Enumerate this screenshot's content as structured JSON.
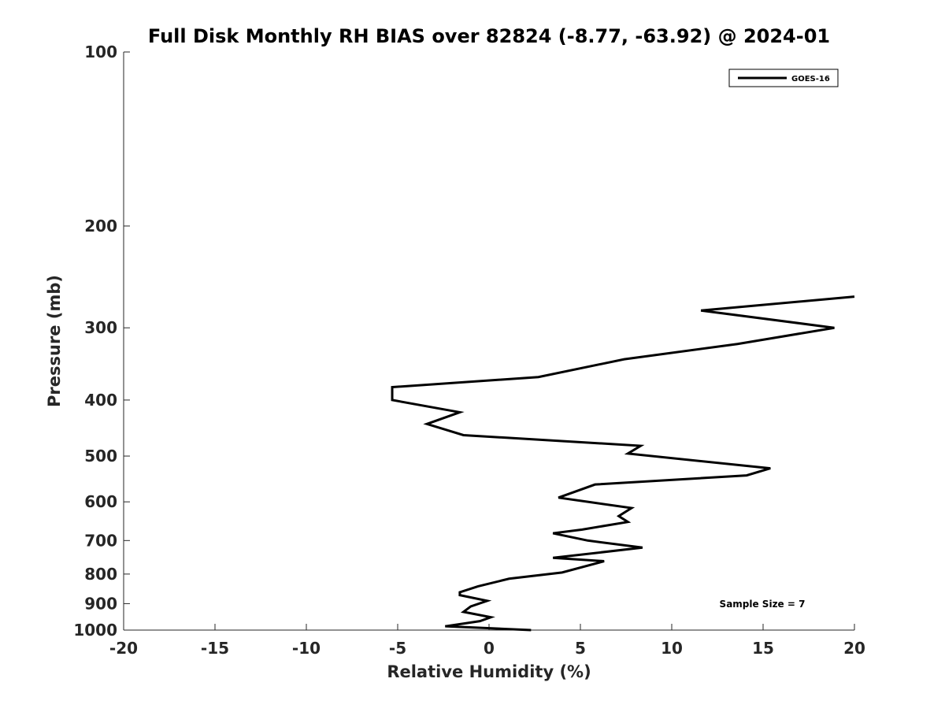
{
  "chart_data": {
    "type": "line",
    "title": "Full Disk Monthly RH BIAS over 82824 (-8.77, -63.92) @ 2024-01",
    "xlabel": "Relative Humidity (%)",
    "ylabel": "Pressure (mb)",
    "xlim": [
      -20,
      20
    ],
    "ylim": [
      100,
      1000
    ],
    "y_scale": "log",
    "y_direction": "reversed",
    "grid": false,
    "x_ticks": [
      -20,
      -15,
      -10,
      -5,
      0,
      5,
      10,
      15,
      20
    ],
    "x_tick_labels": [
      "-20",
      "-15",
      "-10",
      "-5",
      "0",
      "5",
      "10",
      "15",
      "20"
    ],
    "y_ticks": [
      100,
      200,
      300,
      400,
      500,
      600,
      700,
      800,
      900,
      1000
    ],
    "y_tick_labels": [
      "100",
      "200",
      "300",
      "400",
      "500",
      "600",
      "700",
      "800",
      "900",
      "1000"
    ],
    "legend": {
      "placement": "top-right",
      "entries": [
        "GOES-16"
      ]
    },
    "annotation": "Sample Size = 7",
    "line_color": "#000000",
    "series": [
      {
        "name": "GOES-16",
        "points": [
          [
            20.0,
            265
          ],
          [
            11.6,
            280
          ],
          [
            18.9,
            300
          ],
          [
            13.6,
            320
          ],
          [
            7.4,
            340
          ],
          [
            2.7,
            365
          ],
          [
            -5.3,
            380
          ],
          [
            -5.3,
            400
          ],
          [
            -1.6,
            420
          ],
          [
            -3.4,
            440
          ],
          [
            -1.4,
            460
          ],
          [
            8.3,
            480
          ],
          [
            7.6,
            495
          ],
          [
            15.4,
            525
          ],
          [
            14.1,
            540
          ],
          [
            5.8,
            560
          ],
          [
            3.8,
            590
          ],
          [
            7.8,
            615
          ],
          [
            7.1,
            635
          ],
          [
            7.6,
            650
          ],
          [
            5.1,
            670
          ],
          [
            3.5,
            680
          ],
          [
            5.4,
            700
          ],
          [
            8.4,
            720
          ],
          [
            3.5,
            750
          ],
          [
            6.3,
            760
          ],
          [
            4.0,
            795
          ],
          [
            1.1,
            815
          ],
          [
            -0.6,
            840
          ],
          [
            -1.6,
            860
          ],
          [
            -1.6,
            870
          ],
          [
            -0.1,
            890
          ],
          [
            -1.0,
            910
          ],
          [
            -1.4,
            930
          ],
          [
            0.1,
            950
          ],
          [
            -0.5,
            965
          ],
          [
            -2.4,
            985
          ],
          [
            2.3,
            1000
          ]
        ]
      }
    ]
  }
}
